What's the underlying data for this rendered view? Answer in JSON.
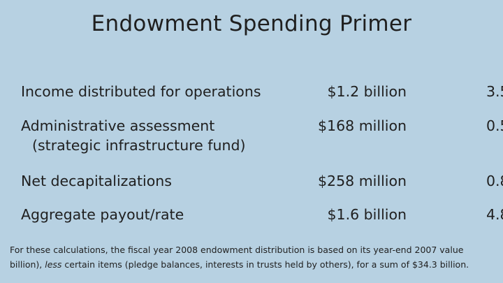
{
  "slide": {
    "title": "Endowment Spending Primer",
    "rows": [
      {
        "label": "Income distributed for operations",
        "sublabel": "",
        "amount": "$1.2 billion",
        "rate": "3.5"
      },
      {
        "label": "Administrative assessment",
        "sublabel": "(strategic infrastructure fund)",
        "amount": "$168 million",
        "rate": "0.5"
      },
      {
        "label": "Net decapitalizations",
        "sublabel": "",
        "amount": "$258 million",
        "rate": "0.8"
      },
      {
        "label": "Aggregate payout/rate",
        "sublabel": "",
        "amount": "$1.6 billion",
        "rate": "4.8"
      }
    ],
    "footnote": {
      "line1": "For these calculations, the fiscal year 2008 endowment distribution is based on its year-end 2007 value",
      "line2_before": "billion), ",
      "line2_emph": "less",
      "line2_after": " certain items (pledge balances, interests in trusts held by others), for a sum of $34.3 billion."
    }
  }
}
